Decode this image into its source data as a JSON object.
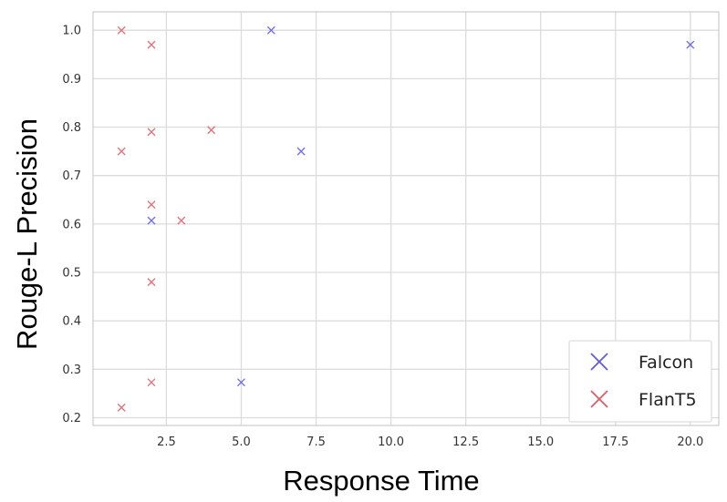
{
  "chart_data": {
    "type": "scatter",
    "xlabel": "Response Time",
    "ylabel": "Rouge-L Precision",
    "xlim": [
      0.05,
      20.95
    ],
    "ylim": [
      0.184,
      1.038
    ],
    "x_ticks": [
      2.5,
      5.0,
      7.5,
      10.0,
      12.5,
      15.0,
      17.5,
      20.0
    ],
    "y_ticks": [
      0.2,
      0.3,
      0.4,
      0.5,
      0.6,
      0.7,
      0.8,
      0.9,
      1.0
    ],
    "x_tick_labels": [
      "2.5",
      "5.0",
      "7.5",
      "10.0",
      "12.5",
      "15.0",
      "17.5",
      "20.0"
    ],
    "y_tick_labels": [
      "0.2",
      "0.3",
      "0.4",
      "0.5",
      "0.6",
      "0.7",
      "0.8",
      "0.9",
      "1.0"
    ],
    "grid": true,
    "legend_position": "bottom-right",
    "series": [
      {
        "name": "Falcon",
        "color": "#5a5ae6",
        "marker": "x",
        "points": [
          [
            6,
            1.0
          ],
          [
            20,
            0.97
          ],
          [
            7,
            0.75
          ],
          [
            2,
            0.607
          ],
          [
            5,
            0.273
          ]
        ]
      },
      {
        "name": "FlanT5",
        "color": "#e05a66",
        "marker": "x",
        "points": [
          [
            1,
            1.0
          ],
          [
            2,
            0.97
          ],
          [
            2,
            0.79
          ],
          [
            4,
            0.794
          ],
          [
            1,
            0.75
          ],
          [
            2,
            0.64
          ],
          [
            3,
            0.607
          ],
          [
            2,
            0.48
          ],
          [
            2,
            0.273
          ],
          [
            1,
            0.221
          ]
        ]
      }
    ]
  }
}
